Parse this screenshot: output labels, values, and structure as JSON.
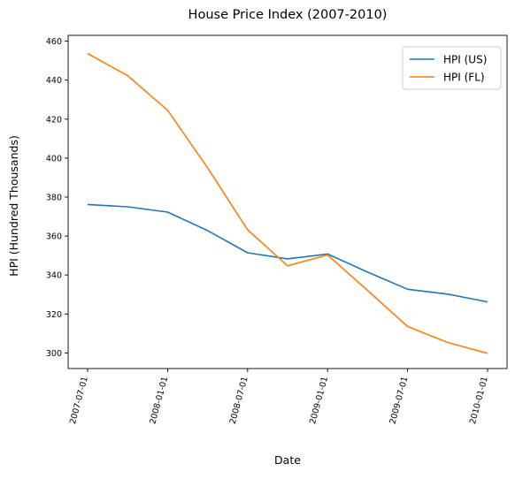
{
  "chart_data": {
    "type": "line",
    "title": "House Price Index (2007-2010)",
    "xlabel": "Date",
    "ylabel": "HPI (Hundred Thousands)",
    "x": [
      "2007-07-01",
      "2007-10-01",
      "2008-01-01",
      "2008-04-01",
      "2008-07-01",
      "2008-10-01",
      "2009-01-01",
      "2009-04-01",
      "2009-07-01",
      "2009-10-01",
      "2010-01-01"
    ],
    "xticks": [
      "2007-07-01",
      "2008-01-01",
      "2008-07-01",
      "2009-01-01",
      "2009-07-01",
      "2010-01-01"
    ],
    "yticks": [
      300,
      320,
      340,
      360,
      380,
      400,
      420,
      440,
      460
    ],
    "ylim": [
      292,
      463
    ],
    "grid": false,
    "legend_position": "top-right",
    "series": [
      {
        "name": "HPI (US)",
        "color": "#1f77b4",
        "values": [
          376.2,
          375.0,
          372.3,
          362.8,
          351.4,
          348.3,
          350.8,
          341.5,
          332.7,
          330.2,
          326.2
        ]
      },
      {
        "name": "HPI (FL)",
        "color": "#ff7f0e",
        "values": [
          453.7,
          442.3,
          424.6,
          395.0,
          363.2,
          344.7,
          350.3,
          332.1,
          313.6,
          305.4,
          299.8
        ]
      }
    ]
  }
}
